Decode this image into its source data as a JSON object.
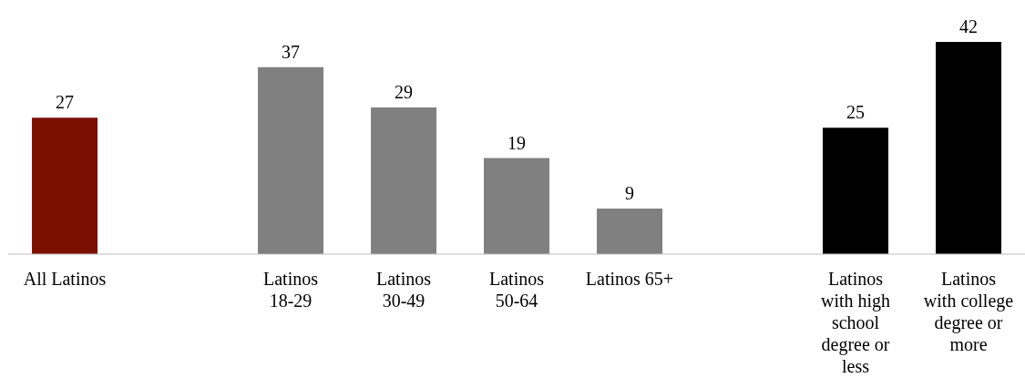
{
  "chart_data": {
    "type": "bar",
    "categories": [
      "All Latinos",
      null,
      "Latinos 18-29",
      "Latinos 30-49",
      "Latinos 50-64",
      "Latinos 65+",
      null,
      "Latinos with high school degree or less",
      "Latinos with college degree or more"
    ],
    "values": [
      27,
      null,
      37,
      29,
      19,
      9,
      null,
      25,
      42
    ],
    "colors": [
      "#7b0f00",
      "#808080",
      "#808080",
      "#808080",
      "#808080",
      "#808080",
      "#000000",
      "#000000",
      "#000000"
    ],
    "data_labels": true,
    "grid": false,
    "legend": false,
    "tick_labels": "x"
  }
}
